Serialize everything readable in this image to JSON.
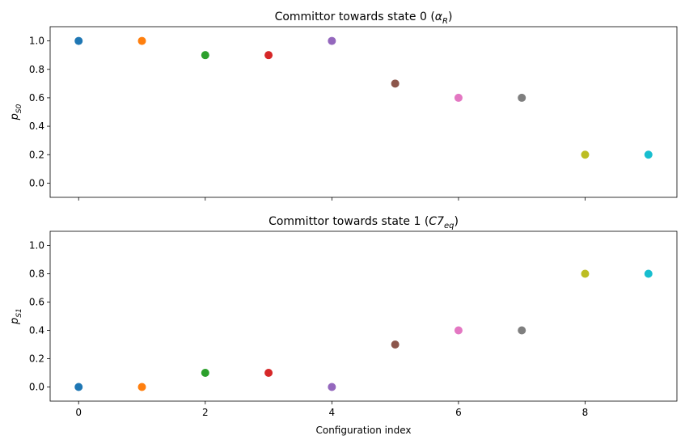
{
  "chart_data": [
    {
      "type": "scatter",
      "title": "Committor towards state 0 (",
      "title_math_base": "α",
      "title_math_sub": "R",
      "title_suffix": ")",
      "ylabel_base": "p",
      "ylabel_sub": "S0",
      "xlabel": "",
      "x": [
        0,
        1,
        2,
        3,
        4,
        5,
        6,
        7,
        8,
        9
      ],
      "y": [
        1.0,
        1.0,
        0.9,
        0.9,
        1.0,
        0.7,
        0.6,
        0.6,
        0.2,
        0.2
      ],
      "colors": [
        "#1f77b4",
        "#ff7f0e",
        "#2ca02c",
        "#d62728",
        "#9467bd",
        "#8c564b",
        "#e377c2",
        "#7f7f7f",
        "#bcbd22",
        "#17becf"
      ],
      "xlim": [
        -0.45,
        9.45
      ],
      "ylim": [
        -0.1,
        1.1
      ],
      "yticks": [
        "0.0",
        "0.2",
        "0.4",
        "0.6",
        "0.8",
        "1.0"
      ],
      "xticks": [],
      "grid": false
    },
    {
      "type": "scatter",
      "title": "Committor towards state 1 (",
      "title_math_base": "C7",
      "title_math_sub": "eq",
      "title_suffix": ")",
      "ylabel_base": "p",
      "ylabel_sub": "S1",
      "xlabel": "Configuration index",
      "x": [
        0,
        1,
        2,
        3,
        4,
        5,
        6,
        7,
        8,
        9
      ],
      "y": [
        0.0,
        0.0,
        0.1,
        0.1,
        0.0,
        0.3,
        0.4,
        0.4,
        0.8,
        0.8
      ],
      "colors": [
        "#1f77b4",
        "#ff7f0e",
        "#2ca02c",
        "#d62728",
        "#9467bd",
        "#8c564b",
        "#e377c2",
        "#7f7f7f",
        "#bcbd22",
        "#17becf"
      ],
      "xlim": [
        -0.45,
        9.45
      ],
      "ylim": [
        -0.1,
        1.1
      ],
      "yticks": [
        "0.0",
        "0.2",
        "0.4",
        "0.6",
        "0.8",
        "1.0"
      ],
      "xticks": [
        "0",
        "2",
        "4",
        "6",
        "8"
      ],
      "grid": false
    }
  ]
}
